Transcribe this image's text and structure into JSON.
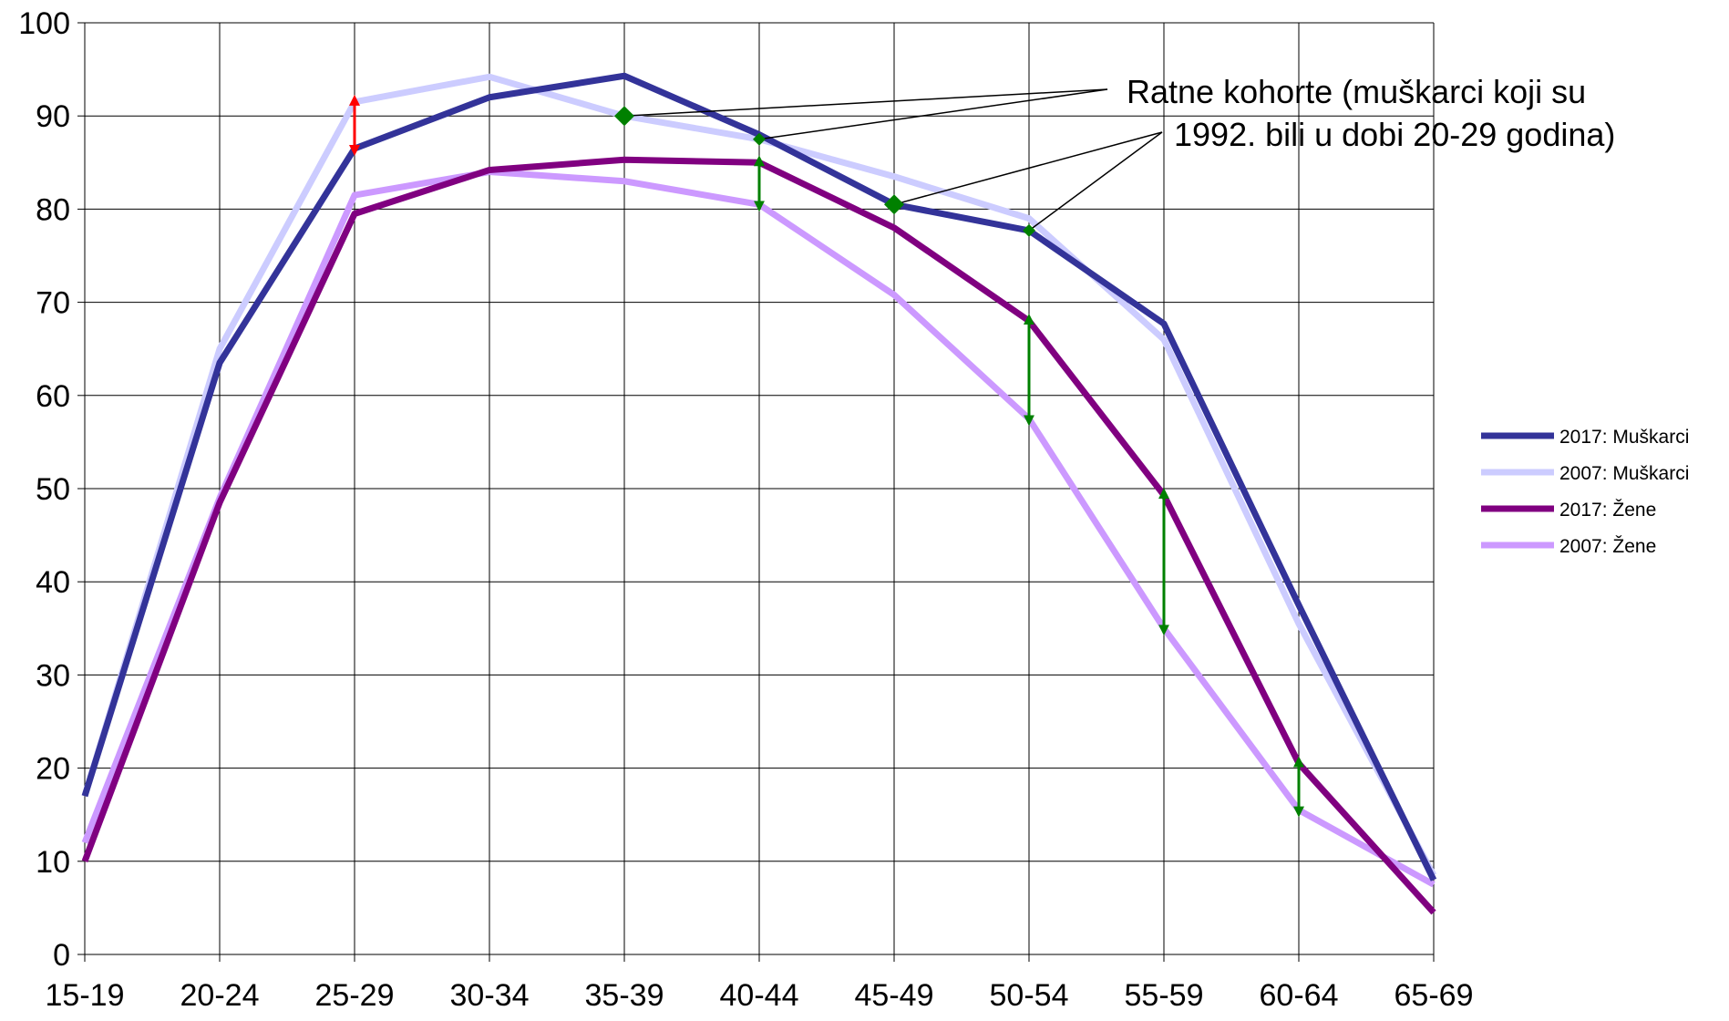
{
  "chart_data": {
    "type": "line",
    "categories": [
      "15-19",
      "20-24",
      "25-29",
      "30-34",
      "35-39",
      "40-44",
      "45-49",
      "50-54",
      "55-59",
      "60-64",
      "65-69"
    ],
    "ylim": [
      0,
      100
    ],
    "yticks": [
      0,
      10,
      20,
      30,
      40,
      50,
      60,
      70,
      80,
      90,
      100
    ],
    "grid": true,
    "legend_position": "right",
    "series": [
      {
        "name": "2017: Muškarci",
        "color": "#333399",
        "values": [
          17.0,
          63.5,
          86.5,
          92.0,
          94.3,
          88.0,
          80.5,
          77.7,
          67.7,
          37.5,
          8.0
        ]
      },
      {
        "name": "2007: Muškarci",
        "color": "#CCCCFF",
        "values": [
          17.0,
          65.0,
          91.5,
          94.2,
          90.0,
          87.5,
          83.5,
          79.0,
          66.0,
          35.5,
          8.5
        ]
      },
      {
        "name": "2017: Žene",
        "color": "#800080",
        "values": [
          10.0,
          48.5,
          79.5,
          84.2,
          85.3,
          85.0,
          78.0,
          68.0,
          49.3,
          20.5,
          4.5
        ]
      },
      {
        "name": "2007: Žene",
        "color": "#CC99FF",
        "values": [
          12.0,
          49.0,
          81.5,
          84.0,
          83.0,
          80.5,
          70.8,
          57.5,
          35.0,
          15.5,
          7.5
        ]
      }
    ],
    "annotation": {
      "lines": [
        "Ratne kohorte (muškarci koji su",
        "1992. bili u dobi 20-29 godina)"
      ],
      "markers": [
        {
          "category": "35-39",
          "value": 90.0
        },
        {
          "category": "40-44",
          "value": 87.5
        },
        {
          "category": "45-49",
          "value": 80.5
        },
        {
          "category": "50-54",
          "value": 77.7
        }
      ]
    },
    "arrows": [
      {
        "category": "25-29",
        "from": 91.5,
        "to": 86.5,
        "color": "#FF0000"
      },
      {
        "category": "40-44",
        "from": 85.0,
        "to": 80.5,
        "color": "#008000"
      },
      {
        "category": "50-54",
        "from": 68.0,
        "to": 57.5,
        "color": "#008000"
      },
      {
        "category": "55-59",
        "from": 49.3,
        "to": 35.0,
        "color": "#008000"
      },
      {
        "category": "60-64",
        "from": 20.5,
        "to": 15.5,
        "color": "#008000"
      }
    ],
    "colors": {
      "grid": "#000000",
      "marker": "#008000"
    }
  }
}
